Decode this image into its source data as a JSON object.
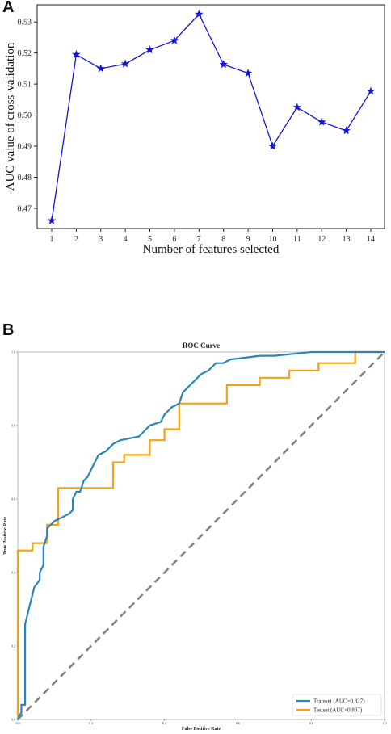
{
  "panels": {
    "a_label": "A",
    "b_label": "B"
  },
  "chart_data": [
    {
      "type": "line",
      "title": "",
      "xlabel": "Number of features selected",
      "ylabel": "AUC value of cross-validation",
      "x": [
        1,
        2,
        3,
        4,
        5,
        6,
        7,
        8,
        9,
        10,
        11,
        12,
        13,
        14
      ],
      "y_ticks": [
        "0.47",
        "0.48",
        "0.49",
        "0.50",
        "0.51",
        "0.52",
        "0.53"
      ],
      "ylim": [
        0.4635,
        0.5355
      ],
      "series": [
        {
          "values": [
            0.466,
            0.5195,
            0.515,
            0.5165,
            0.521,
            0.524,
            0.5325,
            0.5163,
            0.5135,
            0.49,
            0.5025,
            0.4978,
            0.495,
            0.5077
          ],
          "marker": "star",
          "color": "#1515d6"
        }
      ],
      "grid": false
    },
    {
      "type": "line",
      "title": "ROC Curve",
      "xlabel": "False Positive Rate",
      "ylabel": "True Positive Rate",
      "xlim": [
        0,
        1
      ],
      "ylim": [
        0,
        1
      ],
      "x_ticks": [
        "0.0",
        "0.2",
        "0.4",
        "0.6",
        "0.8",
        "1.0"
      ],
      "y_ticks": [
        "0.0",
        "0.2",
        "0.4",
        "0.6",
        "0.8",
        "1.0"
      ],
      "legend_position": "bottom-right",
      "series": [
        {
          "name": "Trainset (AUC=0.827)",
          "color": "#2a86b8",
          "points": [
            [
              0,
              0
            ],
            [
              0.01,
              0.02
            ],
            [
              0.01,
              0.04
            ],
            [
              0.02,
              0.04
            ],
            [
              0.02,
              0.26
            ],
            [
              0.025,
              0.28
            ],
            [
              0.03,
              0.3
            ],
            [
              0.04,
              0.34
            ],
            [
              0.045,
              0.36
            ],
            [
              0.06,
              0.38
            ],
            [
              0.06,
              0.4
            ],
            [
              0.07,
              0.42
            ],
            [
              0.07,
              0.47
            ],
            [
              0.08,
              0.5
            ],
            [
              0.08,
              0.52
            ],
            [
              0.1,
              0.54
            ],
            [
              0.12,
              0.55
            ],
            [
              0.14,
              0.56
            ],
            [
              0.15,
              0.57
            ],
            [
              0.15,
              0.6
            ],
            [
              0.16,
              0.62
            ],
            [
              0.17,
              0.62
            ],
            [
              0.18,
              0.65
            ],
            [
              0.19,
              0.66
            ],
            [
              0.2,
              0.68
            ],
            [
              0.21,
              0.7
            ],
            [
              0.22,
              0.72
            ],
            [
              0.24,
              0.73
            ],
            [
              0.26,
              0.75
            ],
            [
              0.28,
              0.76
            ],
            [
              0.33,
              0.77
            ],
            [
              0.34,
              0.78
            ],
            [
              0.35,
              0.79
            ],
            [
              0.36,
              0.8
            ],
            [
              0.39,
              0.81
            ],
            [
              0.4,
              0.83
            ],
            [
              0.42,
              0.85
            ],
            [
              0.44,
              0.86
            ],
            [
              0.45,
              0.89
            ],
            [
              0.46,
              0.9
            ],
            [
              0.48,
              0.92
            ],
            [
              0.5,
              0.94
            ],
            [
              0.52,
              0.95
            ],
            [
              0.54,
              0.97
            ],
            [
              0.56,
              0.97
            ],
            [
              0.58,
              0.98
            ],
            [
              0.66,
              0.99
            ],
            [
              0.7,
              0.99
            ],
            [
              0.8,
              1.0
            ],
            [
              1.0,
              1.0
            ]
          ]
        },
        {
          "name": "Testset (AUC=0.807)",
          "color": "#f2a30f",
          "points": [
            [
              0,
              0
            ],
            [
              0,
              0.46
            ],
            [
              0.04,
              0.46
            ],
            [
              0.04,
              0.48
            ],
            [
              0.08,
              0.48
            ],
            [
              0.08,
              0.53
            ],
            [
              0.11,
              0.53
            ],
            [
              0.11,
              0.63
            ],
            [
              0.26,
              0.63
            ],
            [
              0.26,
              0.7
            ],
            [
              0.29,
              0.7
            ],
            [
              0.29,
              0.72
            ],
            [
              0.36,
              0.72
            ],
            [
              0.36,
              0.76
            ],
            [
              0.4,
              0.76
            ],
            [
              0.4,
              0.79
            ],
            [
              0.44,
              0.79
            ],
            [
              0.44,
              0.86
            ],
            [
              0.57,
              0.86
            ],
            [
              0.57,
              0.91
            ],
            [
              0.66,
              0.91
            ],
            [
              0.66,
              0.93
            ],
            [
              0.74,
              0.93
            ],
            [
              0.74,
              0.95
            ],
            [
              0.82,
              0.95
            ],
            [
              0.82,
              0.97
            ],
            [
              0.92,
              0.97
            ],
            [
              0.92,
              1.0
            ],
            [
              1.0,
              1.0
            ]
          ]
        },
        {
          "name": "",
          "color": "#808080",
          "style": "dashed",
          "points": [
            [
              0,
              0
            ],
            [
              1,
              1
            ]
          ]
        }
      ]
    }
  ]
}
